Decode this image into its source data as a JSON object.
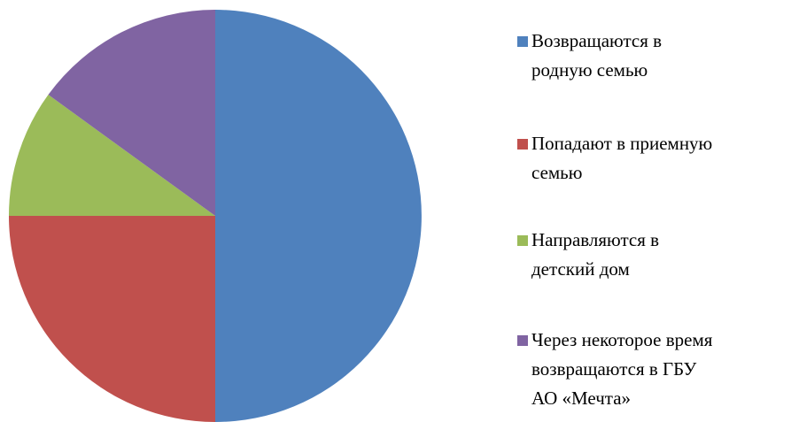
{
  "chart_data": {
    "type": "pie",
    "categories": [
      "Возвращаются в\nродную семью",
      "Попадают в приемную\nсемью",
      "Направляются в\nдетский дом",
      "Через некоторое время\nвозвращаются в ГБУ\nАО «Мечта»"
    ],
    "values": [
      50,
      25,
      10,
      15
    ],
    "colors": [
      "#4f81bd",
      "#c0504d",
      "#9bbb59",
      "#8064a2"
    ],
    "legend": "right"
  }
}
